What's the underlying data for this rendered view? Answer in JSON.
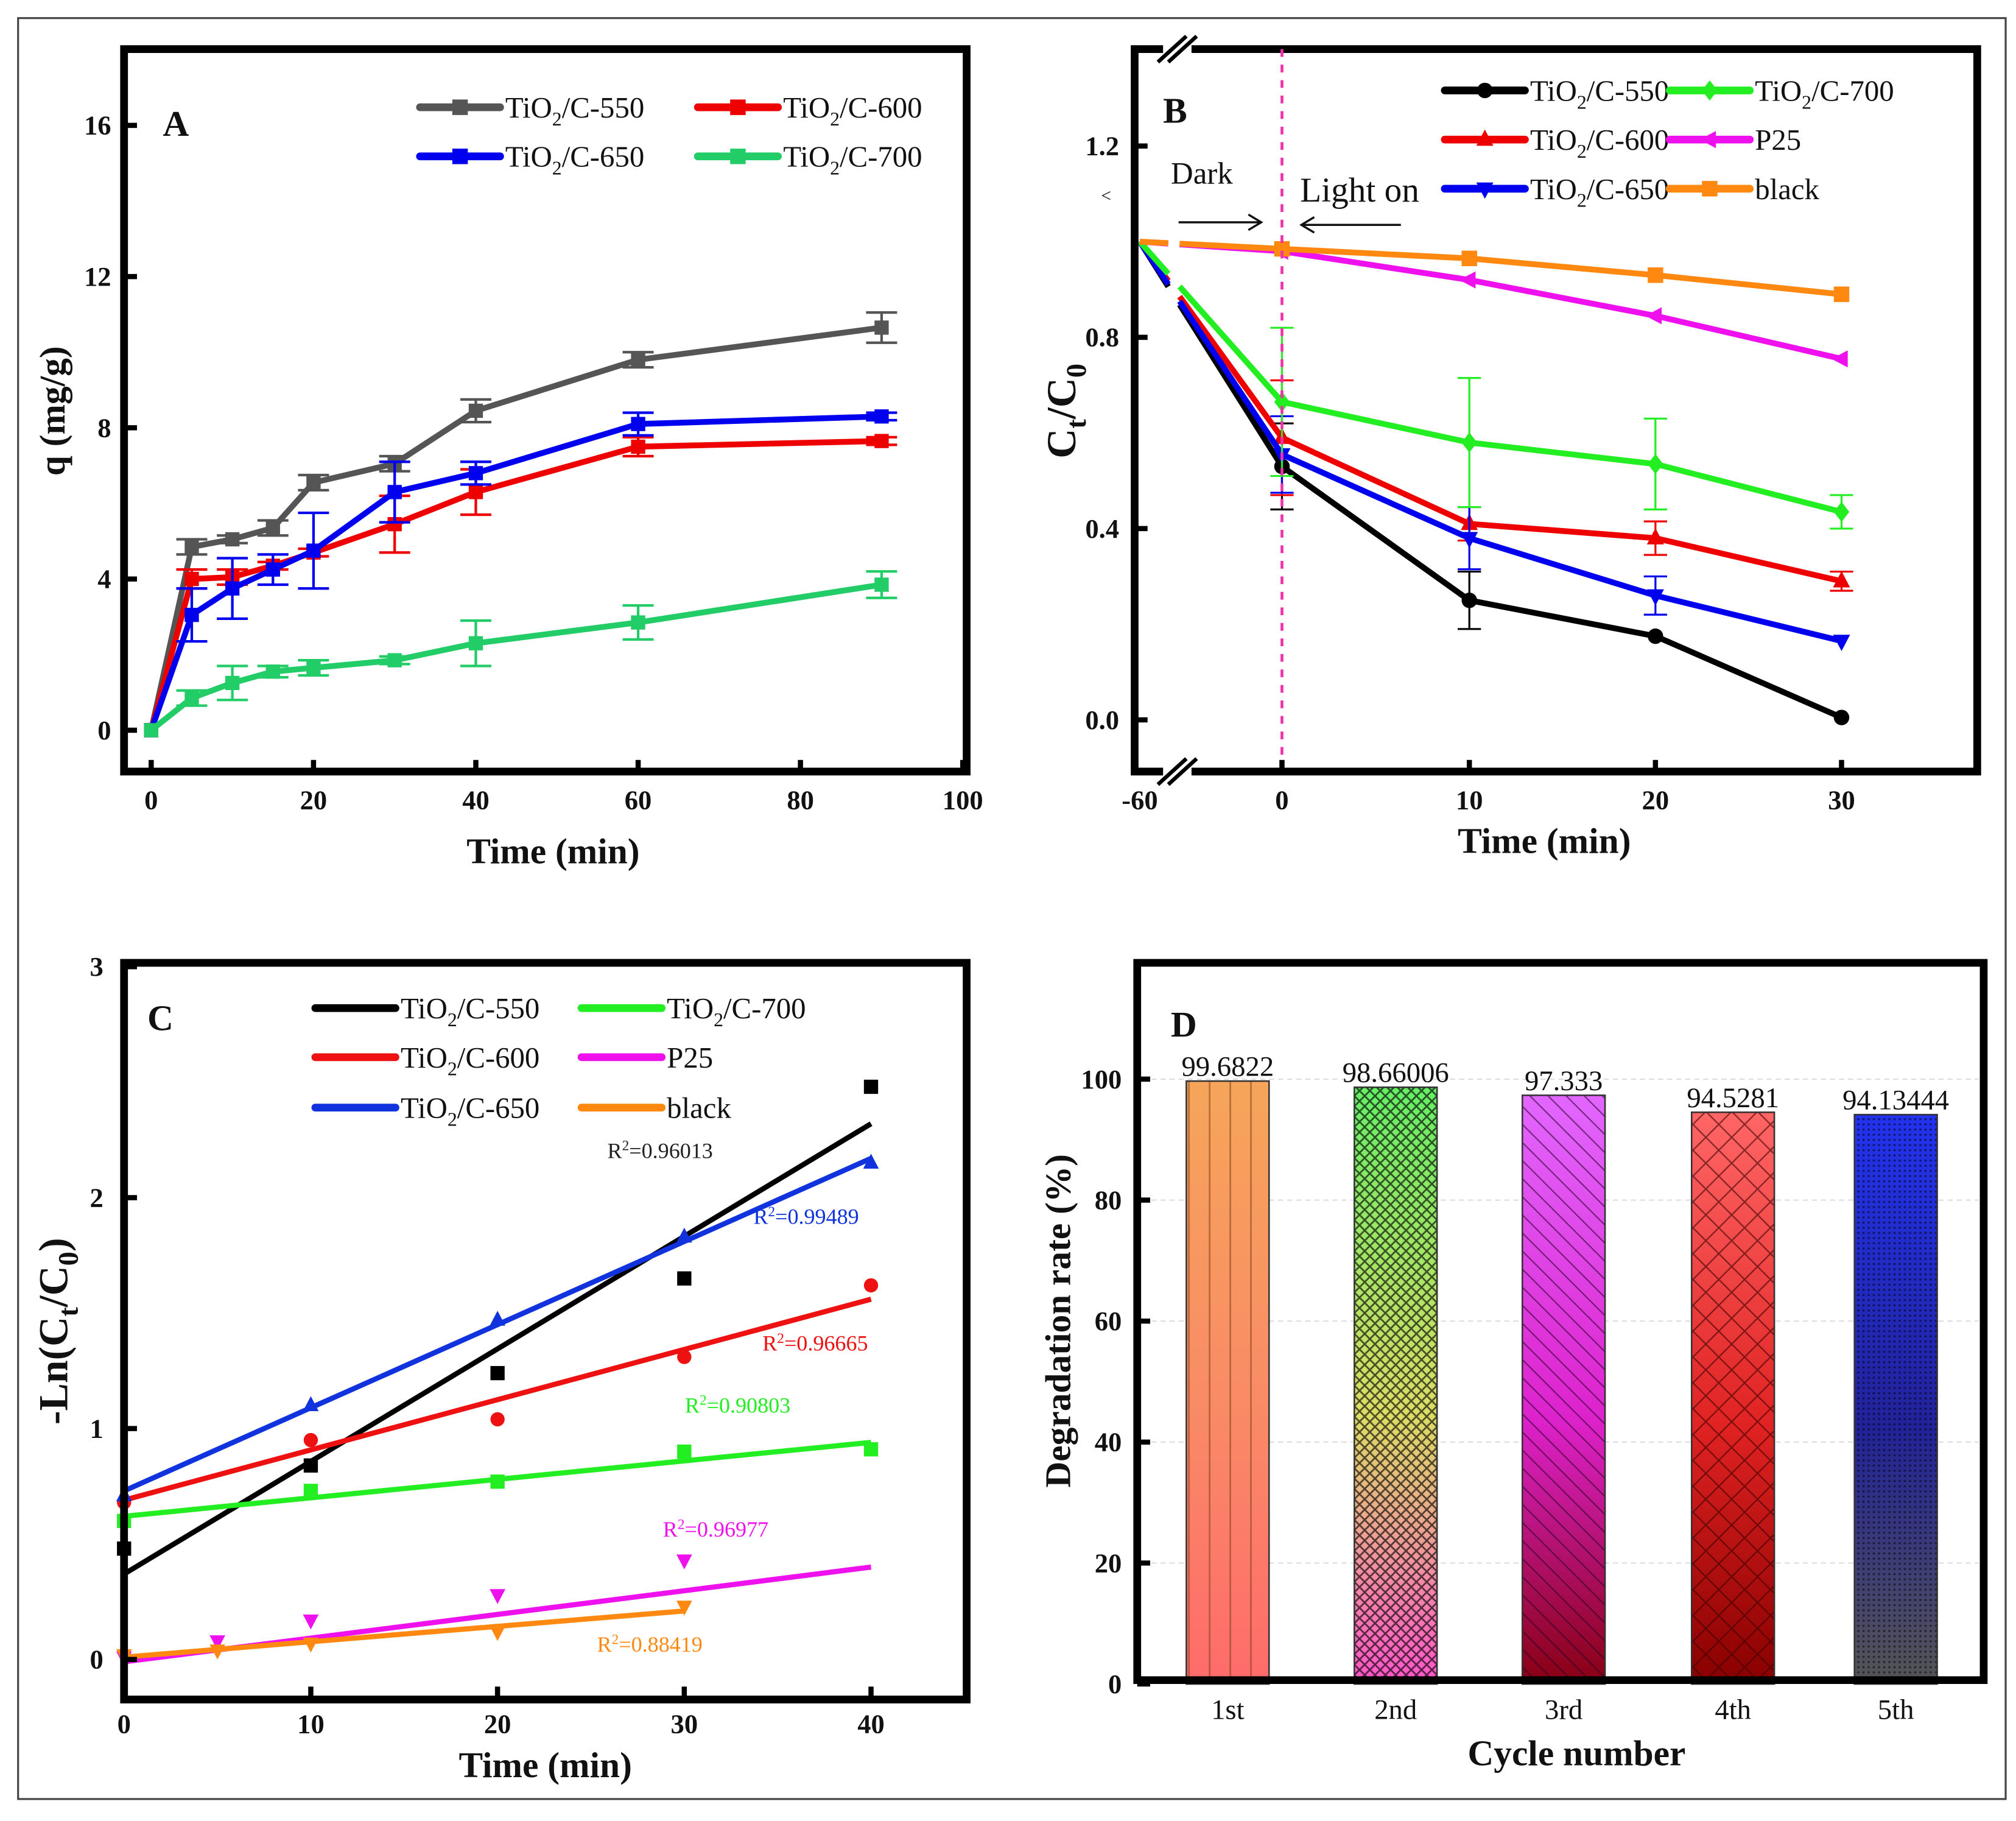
{
  "figure": {
    "panels": [
      "A",
      "B",
      "C",
      "D"
    ]
  },
  "chart_data": [
    {
      "panel": "A",
      "type": "line",
      "title": "",
      "xlabel": "Time (min)",
      "ylabel": "q (mg/g)",
      "xlim": [
        -3,
        100
      ],
      "ylim": [
        -1.3,
        17.5
      ],
      "xticks": [
        0,
        20,
        40,
        60,
        80,
        100
      ],
      "yticks": [
        0,
        4,
        8,
        12,
        16
      ],
      "grid": false,
      "legend_position": "top-right",
      "x": [
        0,
        5,
        10,
        15,
        20,
        30,
        40,
        60,
        90
      ],
      "series": [
        {
          "name": "TiO2/C-550",
          "label_main": "TiO",
          "label_sub": "2",
          "label_tail": "/C-550",
          "color": "#555555",
          "marker": "square",
          "values": [
            0,
            4.85,
            5.05,
            5.35,
            6.55,
            7.05,
            8.45,
            9.8,
            10.65
          ],
          "errors": [
            0,
            0.2,
            0.1,
            0.2,
            0.2,
            0.2,
            0.3,
            0.2,
            0.4
          ]
        },
        {
          "name": "TiO2/C-600",
          "label_main": "TiO",
          "label_sub": "2",
          "label_tail": "/C-600",
          "color": "#ee0000",
          "marker": "square",
          "values": [
            0,
            4.0,
            4.05,
            4.35,
            4.7,
            5.45,
            6.3,
            7.5,
            7.65
          ],
          "errors": [
            0,
            0.25,
            0.2,
            0.1,
            0.1,
            0.75,
            0.6,
            0.25,
            0.1
          ]
        },
        {
          "name": "TiO2/C-650",
          "label_main": "TiO",
          "label_sub": "2",
          "label_tail": "/C-650",
          "color": "#0000ee",
          "marker": "square",
          "values": [
            0,
            3.05,
            3.75,
            4.25,
            4.75,
            6.3,
            6.8,
            8.1,
            8.3
          ],
          "errors": [
            0,
            0.7,
            0.8,
            0.4,
            1.0,
            0.8,
            0.3,
            0.3,
            0.1
          ]
        },
        {
          "name": "TiO2/C-700",
          "label_main": "TiO",
          "label_sub": "2",
          "label_tail": "/C-700",
          "color": "#22cc66",
          "marker": "square",
          "values": [
            0,
            0.85,
            1.25,
            1.55,
            1.65,
            1.85,
            2.3,
            2.85,
            3.85
          ],
          "errors": [
            0,
            0.2,
            0.45,
            0.15,
            0.2,
            0.1,
            0.6,
            0.45,
            0.35
          ]
        }
      ]
    },
    {
      "panel": "B",
      "type": "line",
      "title": "",
      "xlabel": "Time (min)",
      "ylabel_main": "C",
      "ylabel_sub1": "t",
      "ylabel_mid": "/C",
      "ylabel_sub2": "0",
      "ylabel": "Ct/C0",
      "x_break": true,
      "xticks": [
        -60,
        0,
        10,
        20,
        30
      ],
      "ylim": [
        -0.1,
        1.4
      ],
      "yticks": [
        0.0,
        0.4,
        0.8,
        1.2
      ],
      "ytick_labels": [
        "0.0",
        "0.4",
        "0.8",
        "1.2"
      ],
      "grid": false,
      "legend_position": "top-right",
      "annotations": {
        "dark": "Dark",
        "light": "Light on",
        "stray_glyph": "<"
      },
      "x": [
        -60,
        0,
        10,
        20,
        30
      ],
      "series": [
        {
          "name": "TiO2/C-550",
          "label_main": "TiO",
          "label_sub": "2",
          "label_tail": "/C-550",
          "color": "#000000",
          "marker": "circle",
          "values": [
            1.0,
            0.53,
            0.25,
            0.175,
            0.005
          ],
          "errors": [
            0,
            0.09,
            0.06,
            0,
            0
          ]
        },
        {
          "name": "TiO2/C-600",
          "label_main": "TiO",
          "label_sub": "2",
          "label_tail": "/C-600",
          "color": "#ee0000",
          "marker": "triangle-up",
          "values": [
            1.0,
            0.59,
            0.41,
            0.38,
            0.29
          ],
          "errors": [
            0,
            0.12,
            0.035,
            0.035,
            0.02
          ]
        },
        {
          "name": "TiO2/C-650",
          "label_main": "TiO",
          "label_sub": "2",
          "label_tail": "/C-650",
          "color": "#0000ee",
          "marker": "triangle-down",
          "values": [
            1.0,
            0.555,
            0.38,
            0.26,
            0.165
          ],
          "errors": [
            0,
            0.08,
            0.065,
            0.04,
            0
          ]
        },
        {
          "name": "TiO2/C-700",
          "label_main": "TiO",
          "label_sub": "2",
          "label_tail": "/C-700",
          "color": "#22ee22",
          "marker": "diamond",
          "values": [
            1.0,
            0.665,
            0.58,
            0.535,
            0.435
          ],
          "errors": [
            0,
            0.155,
            0.135,
            0.095,
            0.035
          ]
        },
        {
          "name": "P25",
          "label_main": "P25",
          "label_sub": "",
          "label_tail": "",
          "color": "#ee11ee",
          "marker": "triangle-left",
          "values": [
            1.0,
            0.98,
            0.92,
            0.845,
            0.755
          ],
          "errors": [
            0,
            0,
            0,
            0,
            0
          ]
        },
        {
          "name": "black",
          "label_main": "black",
          "label_sub": "",
          "label_tail": "",
          "color": "#ff8811",
          "marker": "square",
          "values": [
            1.0,
            0.985,
            0.965,
            0.93,
            0.89
          ],
          "errors": [
            0,
            0,
            0,
            0,
            0
          ]
        }
      ]
    },
    {
      "panel": "C",
      "type": "scatter",
      "title": "",
      "xlabel": "Time (min)",
      "ylabel": "-Ln(Ct/C0)",
      "ylabel_parts": [
        "-Ln(C",
        "t",
        "/C",
        "0",
        ")"
      ],
      "xlim": [
        0,
        45
      ],
      "ylim": [
        -0.1,
        3
      ],
      "xticks": [
        0,
        10,
        20,
        30,
        40
      ],
      "yticks": [
        0,
        1,
        2,
        3
      ],
      "grid": false,
      "legend_position": "top",
      "series": [
        {
          "name": "TiO2/C-550",
          "label_main": "TiO",
          "label_sub": "2",
          "label_tail": "/C-550",
          "color": "#000000",
          "marker": "square",
          "x": [
            0,
            10,
            20,
            30,
            40
          ],
          "values": [
            0.48,
            0.84,
            1.24,
            1.65,
            2.48
          ],
          "fit": [
            0.37,
            2.32
          ],
          "fit_x": [
            0,
            40
          ],
          "r2": "R²=0.96013",
          "r2_sup_base": "R",
          "r2_sup": "2",
          "r2_tail": "=0.96013"
        },
        {
          "name": "TiO2/C-600",
          "label_main": "TiO",
          "label_sub": "2",
          "label_tail": "/C-600",
          "color": "#ee1111",
          "marker": "circle",
          "x": [
            0,
            10,
            20,
            30,
            40
          ],
          "values": [
            0.68,
            0.95,
            1.04,
            1.31,
            1.62
          ],
          "fit": [
            0.69,
            1.56
          ],
          "fit_x": [
            0,
            40
          ],
          "r2": "R²=0.96665",
          "r2_sup_base": "R",
          "r2_sup": "2",
          "r2_tail": "=0.96665"
        },
        {
          "name": "TiO2/C-650",
          "label_main": "TiO",
          "label_sub": "2",
          "label_tail": "/C-650",
          "color": "#1133dd",
          "marker": "triangle-up",
          "x": [
            0,
            10,
            20,
            30,
            40
          ],
          "values": [
            0.71,
            1.1,
            1.47,
            1.83,
            2.15
          ],
          "fit": [
            0.73,
            2.17
          ],
          "fit_x": [
            0,
            40
          ],
          "r2": "R²=0.99489",
          "r2_sup_base": "R",
          "r2_sup": "2",
          "r2_tail": "=0.99489"
        },
        {
          "name": "TiO2/C-700",
          "label_main": "TiO",
          "label_sub": "2",
          "label_tail": "/C-700",
          "color": "#22ee22",
          "marker": "square",
          "x": [
            0,
            10,
            20,
            30,
            40
          ],
          "values": [
            0.6,
            0.73,
            0.77,
            0.9,
            0.91
          ],
          "fit": [
            0.62,
            0.94
          ],
          "fit_x": [
            0,
            40
          ],
          "r2": "R²=0.90803",
          "r2_sup_base": "R",
          "r2_sup": "2",
          "r2_tail": "=0.90803"
        },
        {
          "name": "P25",
          "label_main": "P25",
          "label_sub": "",
          "label_tail": "",
          "color": "#ee11ee",
          "marker": "triangle-down",
          "x": [
            0,
            5,
            10,
            20,
            30
          ],
          "values": [
            0.01,
            0.08,
            0.17,
            0.28,
            0.43
          ],
          "fit": [
            -0.01,
            0.4
          ],
          "fit_x": [
            0,
            40
          ],
          "r2": "R²=0.96977",
          "r2_sup_base": "R",
          "r2_sup": "2",
          "r2_tail": "=0.96977"
        },
        {
          "name": "black",
          "label_main": "black",
          "label_sub": "",
          "label_tail": "",
          "color": "#ff8811",
          "marker": "triangle-down",
          "x": [
            0,
            5,
            10,
            20,
            30
          ],
          "values": [
            0.02,
            0.04,
            0.07,
            0.12,
            0.23
          ],
          "fit": [
            0.01,
            0.21
          ],
          "fit_x": [
            0,
            30
          ],
          "r2": "R²=0.88419",
          "r2_sup_base": "R",
          "r2_sup": "2",
          "r2_tail": "=0.88419"
        }
      ]
    },
    {
      "panel": "D",
      "type": "bar",
      "title": "",
      "xlabel": "Cycle number",
      "ylabel": "Degradation rate (%)",
      "ylim": [
        0,
        120
      ],
      "yticks": [
        0,
        20,
        40,
        60,
        80,
        100
      ],
      "grid": true,
      "categories": [
        "1st",
        "2nd",
        "3rd",
        "4th",
        "5th"
      ],
      "values": [
        99.6822,
        98.66006,
        97.333,
        94.5281,
        94.13444
      ],
      "value_labels": [
        "99.6822",
        "98.66006",
        "97.333",
        "94.5281",
        "94.13444"
      ],
      "bar_styles": [
        {
          "top": "#f6a55a",
          "mid": "#f98a66",
          "bottom": "#ff6b6b",
          "pattern": "vertical-lines"
        },
        {
          "top": "#66ee66",
          "mid": "#dddd66",
          "bottom": "#ff55cc",
          "pattern": "dots-cross"
        },
        {
          "top": "#e266ff",
          "mid": "#dd22cc",
          "bottom": "#880011",
          "pattern": "diagonal-lines"
        },
        {
          "top": "#ff6666",
          "mid": "#e02222",
          "bottom": "#880000",
          "pattern": "crosshatch"
        },
        {
          "top": "#2233ee",
          "mid": "#222299",
          "bottom": "#555555",
          "pattern": "fine-dots"
        }
      ]
    }
  ]
}
